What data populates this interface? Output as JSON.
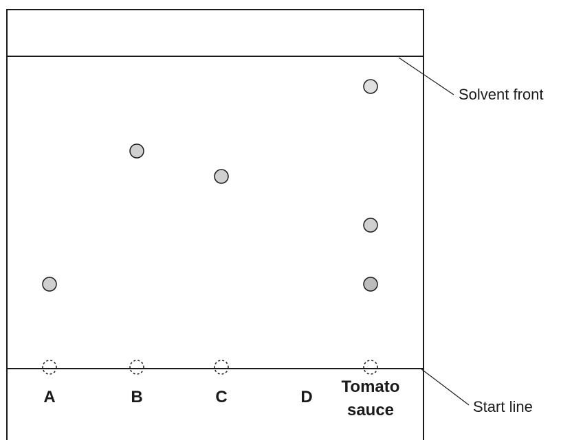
{
  "diagram": {
    "callouts": {
      "solvent_front": "Solvent front",
      "start_line": "Start line"
    },
    "lanes": [
      {
        "label": "A"
      },
      {
        "label": "B"
      },
      {
        "label": "C"
      },
      {
        "label": "D"
      },
      {
        "label_line1": "Tomato",
        "label_line2": "sauce"
      }
    ],
    "colors": {
      "outline": "#1a1a1a",
      "spot_fill": "#d0d0d0",
      "spot_fill_dark": "#bcbcbc"
    }
  }
}
